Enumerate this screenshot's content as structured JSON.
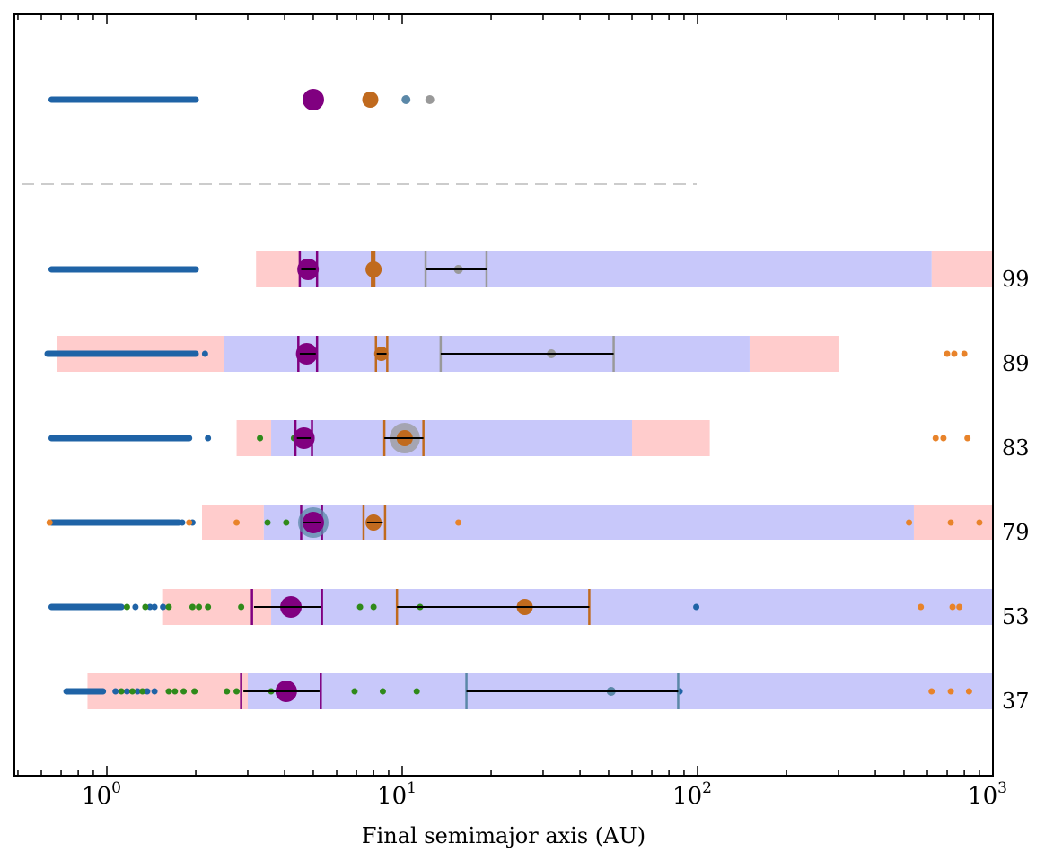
{
  "chart_data": {
    "type": "scatter",
    "xlabel": "Final semimajor axis (AU)",
    "xscale": "log",
    "xlim": [
      0.55,
      1000
    ],
    "x_ticks": [
      {
        "value": 1,
        "base": "10",
        "exp": "0"
      },
      {
        "value": 10,
        "base": "10",
        "exp": "1"
      },
      {
        "value": 100,
        "base": "10",
        "exp": "2"
      },
      {
        "value": 1000,
        "base": "10",
        "exp": "3"
      }
    ],
    "colors": {
      "jupiter": "#800080",
      "saturn": "#c06a1e",
      "uranus": "#5b88a8",
      "neptune": "#999999",
      "planetesimal": "#1f63a6",
      "embryo": "#2f8a1a",
      "ejected": "#e8832a",
      "band_blue": "#c8c8fa",
      "band_pink": "#ffcccc",
      "errorbar": "#000000",
      "divider": "#cccccc"
    },
    "reference": {
      "disk": {
        "from": 0.65,
        "to": 2.0
      },
      "planets": [
        {
          "a": 5.0,
          "size": "large",
          "color": "jupiter"
        },
        {
          "a": 7.8,
          "size": "medium",
          "color": "saturn"
        },
        {
          "a": 10.3,
          "size": "small",
          "color": "uranus"
        },
        {
          "a": 12.4,
          "size": "small",
          "color": "neptune"
        }
      ]
    },
    "rows": [
      {
        "label": "99",
        "pink": [
          [
            3.2,
            4.5
          ],
          [
            620,
            1000
          ]
        ],
        "blue": [
          4.5,
          620
        ],
        "marks": [
          {
            "a": 4.5,
            "color": "jupiter"
          },
          {
            "a": 5.15,
            "color": "jupiter"
          },
          {
            "a": 7.9,
            "color": "saturn"
          },
          {
            "a": 8.05,
            "color": "saturn"
          },
          {
            "a": 12.0,
            "color": "neptune"
          },
          {
            "a": 19.3,
            "color": "neptune"
          }
        ],
        "errorbars": [
          [
            4.55,
            5.1
          ],
          [
            12.0,
            19.3
          ]
        ],
        "planets": [
          {
            "a": 4.8,
            "size": "large",
            "color": "jupiter"
          },
          {
            "a": 8.0,
            "size": "medium",
            "color": "saturn"
          },
          {
            "a": 15.5,
            "size": "small",
            "color": "neptune"
          }
        ],
        "planetesimals": {
          "from": 0.65,
          "to": 2.0
        },
        "embryos": [],
        "ejected": []
      },
      {
        "label": "89",
        "pink": [
          [
            0.68,
            2.5
          ],
          [
            150,
            300
          ]
        ],
        "blue": [
          2.5,
          150
        ],
        "marks": [
          {
            "a": 4.45,
            "color": "jupiter"
          },
          {
            "a": 5.15,
            "color": "jupiter"
          },
          {
            "a": 8.15,
            "color": "saturn"
          },
          {
            "a": 8.9,
            "color": "saturn"
          },
          {
            "a": 13.5,
            "color": "neptune"
          },
          {
            "a": 52,
            "color": "neptune"
          }
        ],
        "errorbars": [
          [
            4.5,
            5.1
          ],
          [
            8.2,
            8.85
          ],
          [
            13.5,
            52
          ]
        ],
        "planets": [
          {
            "a": 4.75,
            "size": "large",
            "color": "jupiter"
          },
          {
            "a": 8.5,
            "size": "medium_small",
            "color": "saturn"
          },
          {
            "a": 32,
            "size": "small",
            "color": "neptune"
          }
        ],
        "planetesimals": {
          "from": 0.63,
          "to": 2.0,
          "scattered": [
            2.15
          ]
        },
        "embryos": [],
        "ejected": [
          700,
          740,
          800
        ]
      },
      {
        "label": "83",
        "pink": [
          [
            2.75,
            3.6
          ],
          [
            60,
            110
          ]
        ],
        "blue": [
          3.6,
          60
        ],
        "marks": [
          {
            "a": 4.35,
            "color": "jupiter"
          },
          {
            "a": 4.95,
            "color": "jupiter"
          },
          {
            "a": 8.7,
            "color": "saturn"
          },
          {
            "a": 11.8,
            "color": "saturn"
          }
        ],
        "errorbars": [
          [
            4.4,
            4.9
          ],
          [
            8.7,
            11.8
          ]
        ],
        "planets": [
          {
            "a": 4.65,
            "size": "large",
            "color": "jupiter"
          },
          {
            "a": 10.2,
            "size": "medium",
            "color": "saturn",
            "halo": "neptune"
          }
        ],
        "planetesimals": {
          "from": 0.65,
          "to": 1.9,
          "scattered": [
            2.2
          ]
        },
        "embryos": [
          3.3,
          4.3
        ],
        "ejected": [
          640,
          680,
          820
        ]
      },
      {
        "label": "79",
        "pink": [
          [
            2.1,
            3.4
          ],
          [
            540,
            1000
          ]
        ],
        "blue": [
          3.4,
          540
        ],
        "marks": [
          {
            "a": 4.55,
            "color": "jupiter"
          },
          {
            "a": 5.35,
            "color": "jupiter"
          },
          {
            "a": 7.4,
            "color": "saturn"
          },
          {
            "a": 8.75,
            "color": "saturn"
          }
        ],
        "errorbars": [
          [
            4.6,
            5.3
          ],
          [
            7.6,
            8.6
          ]
        ],
        "planets": [
          {
            "a": 5.0,
            "size": "large",
            "color": "jupiter",
            "halo": "uranus"
          },
          {
            "a": 8.0,
            "size": "medium",
            "color": "saturn"
          }
        ],
        "planetesimals": {
          "from": 0.65,
          "to": 1.75,
          "scattered": [
            1.8,
            1.95
          ]
        },
        "embryos": [
          3.5,
          4.05
        ],
        "ejected": [
          0.64,
          1.9,
          2.75,
          15.5,
          520,
          720,
          900
        ]
      },
      {
        "label": "53",
        "pink": [
          [
            1.55,
            3.6
          ]
        ],
        "blue": [
          3.6,
          1000
        ],
        "marks": [
          {
            "a": 3.1,
            "color": "jupiter"
          },
          {
            "a": 5.35,
            "color": "jupiter"
          },
          {
            "a": 9.6,
            "color": "saturn"
          },
          {
            "a": 43,
            "color": "saturn"
          }
        ],
        "errorbars": [
          [
            3.15,
            5.3
          ],
          [
            9.6,
            43
          ]
        ],
        "planets": [
          {
            "a": 4.2,
            "size": "large",
            "color": "jupiter"
          },
          {
            "a": 26,
            "size": "medium",
            "color": "saturn"
          }
        ],
        "planetesimals": {
          "from": 0.65,
          "to": 1.12,
          "scattered": [
            1.25,
            1.4,
            1.45,
            1.55,
            99
          ]
        },
        "embryos": [
          1.17,
          1.35,
          1.62,
          1.95,
          2.05,
          2.2,
          2.85,
          7.2,
          8.0,
          11.5
        ],
        "ejected": [
          570,
          730,
          770
        ]
      },
      {
        "label": "37",
        "pink": [
          [
            0.86,
            3.0
          ]
        ],
        "blue": [
          3.0,
          1000
        ],
        "marks": [
          {
            "a": 2.85,
            "color": "jupiter"
          },
          {
            "a": 5.3,
            "color": "jupiter"
          },
          {
            "a": 16.5,
            "color": "uranus"
          },
          {
            "a": 86,
            "color": "uranus"
          }
        ],
        "errorbars": [
          [
            2.9,
            5.25
          ],
          [
            16.5,
            86
          ]
        ],
        "planets": [
          {
            "a": 4.05,
            "size": "large",
            "color": "jupiter"
          },
          {
            "a": 51,
            "size": "small",
            "color": "uranus"
          }
        ],
        "planetesimals": {
          "from": 0.73,
          "to": 0.97,
          "scattered": [
            1.07,
            1.17,
            1.27,
            1.37,
            1.45,
            87
          ]
        },
        "embryos": [
          1.12,
          1.22,
          1.32,
          1.62,
          1.7,
          1.82,
          1.98,
          2.55,
          2.75,
          3.6,
          6.9,
          8.6,
          11.2
        ],
        "ejected": [
          620,
          720,
          830
        ]
      }
    ]
  }
}
